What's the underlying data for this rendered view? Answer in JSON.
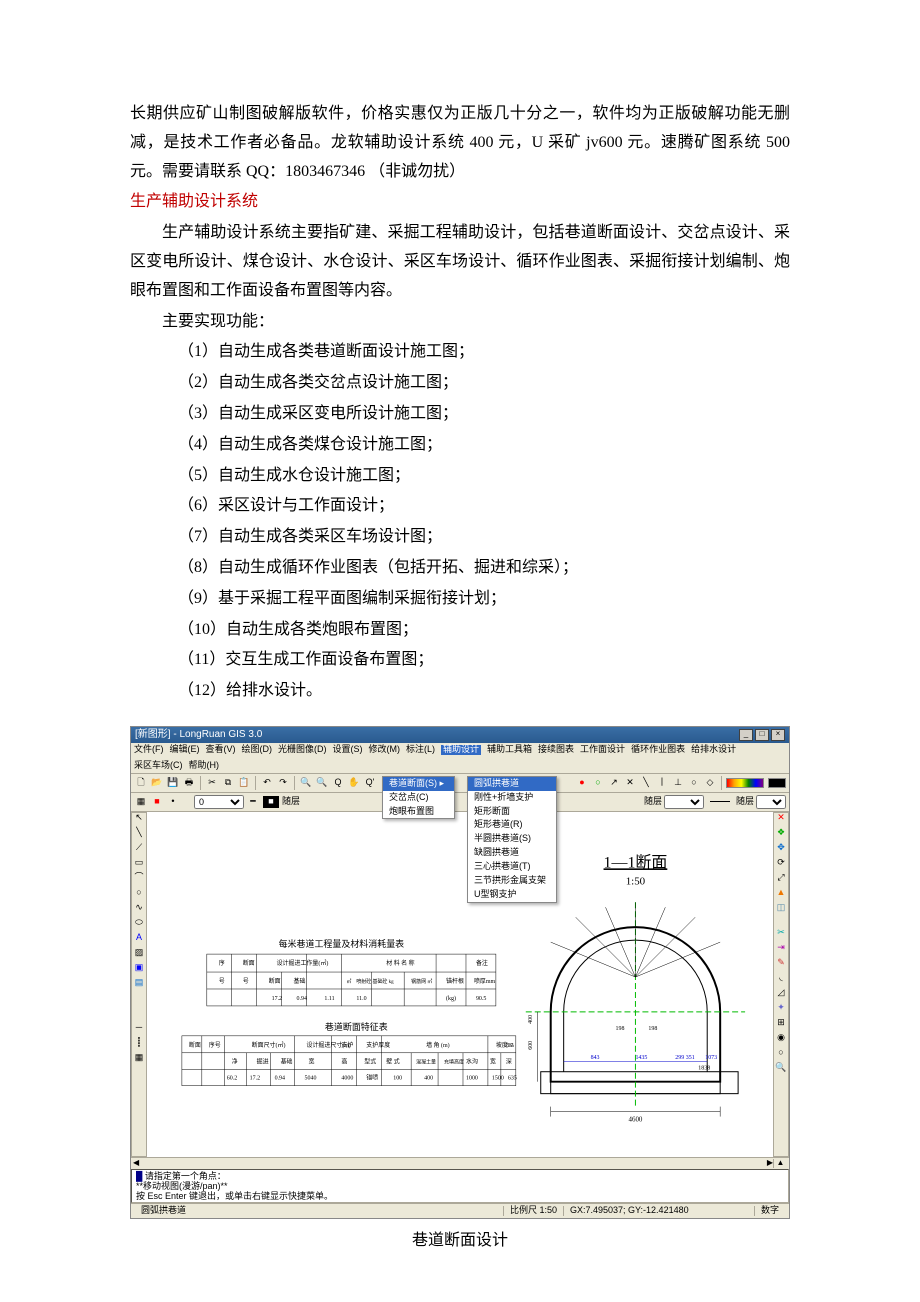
{
  "intro": "长期供应矿山制图破解版软件，价格实惠仅为正版几十分之一，软件均为正版破解功能无删减，是技术工作者必备品。龙软辅助设计系统 400 元，U 采矿 jv600 元。速腾矿图系统 500 元。需要请联系 QQ：1803467346 （非诚勿扰）",
  "heading": "生产辅助设计系统",
  "desc": "生产辅助设计系统主要指矿建、采掘工程辅助设计，包括巷道断面设计、交岔点设计、采区变电所设计、煤仓设计、水仓设计、采区车场设计、循环作业图表、采掘衔接计划编制、炮眼布置图和工作面设备布置图等内容。",
  "func_label": "主要实现功能：",
  "funcs": [
    "（1）自动生成各类巷道断面设计施工图；",
    "（2）自动生成各类交岔点设计施工图；",
    "（3）自动生成采区变电所设计施工图；",
    "（4）自动生成各类煤仓设计施工图；",
    "（5）自动生成水仓设计施工图；",
    "（6）采区设计与工作面设计；",
    "（7）自动生成各类采区车场设计图；",
    "（8）自动生成循环作业图表（包括开拓、掘进和综采）；",
    "（9）基于采掘工程平面图编制采掘衔接计划；",
    "（10）自动生成各类炮眼布置图；",
    "（11）交互生成工作面设备布置图；",
    "（12）给排水设计。"
  ],
  "figcaption": "巷道断面设计",
  "app": {
    "title": "[新图形] - LongRuan GIS 3.0",
    "menus": [
      "文件(F)",
      "编辑(E)",
      "查看(V)",
      "绘图(D)",
      "光栅图像(D)",
      "设置(S)",
      "修改(M)",
      "标注(L)",
      "辅助设计",
      "辅助工具箱",
      "接续图表",
      "工作面设计",
      "循环作业图表",
      "给排水设计",
      "采区车场(C)",
      "帮助(H)"
    ],
    "submenu1": [
      "巷道断面(S)  ▸",
      "交岔点(C)",
      "炮眼布置图"
    ],
    "submenu2_hilite": "圆弧拱巷道",
    "submenu2": [
      "刚性+折墙支护",
      "矩形断面",
      "矩形巷道(R)",
      "半圆拱巷道(S)",
      "缺圆拱巷道",
      "三心拱巷道(T)",
      "三节拱形金属支架",
      "U型钢支护"
    ],
    "toolbar2_text": [
      "随层",
      "随层",
      "随层"
    ],
    "drawing": {
      "title": "1—1断面",
      "scale": "1:50",
      "table1_title": "每米巷道工程量及材料消耗量表",
      "table2_title": "巷道断面特征表",
      "section_label": "断面尺寸(㎡)"
    },
    "cmd": {
      "l1": "请指定第一个角点：",
      "l2": "**移动视图(漫游/pan)**",
      "l3": "按 Esc Enter 键退出，或单击右键显示快捷菜单。"
    },
    "status": {
      "mode": "圆弧拱巷道",
      "scale": "比例尺 1:50",
      "coord": "GX:7.495037; GY:-12.421480",
      "digit": "数字"
    }
  }
}
